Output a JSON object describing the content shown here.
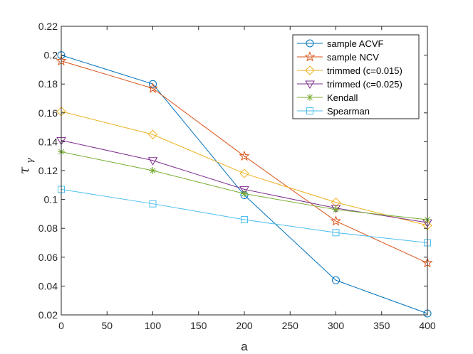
{
  "chart_data": {
    "type": "line",
    "title": "",
    "xlabel": "a",
    "ylabel_main": "τ",
    "ylabel_sub": "γ",
    "x": [
      0,
      100,
      200,
      300,
      400
    ],
    "xlim": [
      0,
      400
    ],
    "ylim": [
      0.02,
      0.22
    ],
    "xticks": [
      0,
      50,
      100,
      150,
      200,
      250,
      300,
      350,
      400
    ],
    "yticks": [
      0.02,
      0.04,
      0.06,
      0.08,
      0.1,
      0.12,
      0.14,
      0.16,
      0.18,
      0.2,
      0.22
    ],
    "xtick_labels": [
      "0",
      "50",
      "100",
      "150",
      "200",
      "250",
      "300",
      "350",
      "400"
    ],
    "ytick_labels": [
      "0.02",
      "0.04",
      "0.06",
      "0.08",
      "0.1",
      "0.12",
      "0.14",
      "0.16",
      "0.18",
      "0.2",
      "0.22"
    ],
    "legend_position": "top-right",
    "grid": false,
    "series": [
      {
        "name": "sample ACVF",
        "marker": "circle",
        "color": "#0072BD",
        "values": [
          0.2,
          0.18,
          0.103,
          0.044,
          0.021
        ]
      },
      {
        "name": "sample NCV",
        "marker": "star",
        "color": "#D95319",
        "values": [
          0.196,
          0.177,
          0.13,
          0.085,
          0.056
        ]
      },
      {
        "name": "trimmed (c=0.015)",
        "marker": "diamond",
        "color": "#EDB120",
        "values": [
          0.161,
          0.145,
          0.118,
          0.098,
          0.082
        ]
      },
      {
        "name": "trimmed (c=0.025)",
        "marker": "triangle-down",
        "color": "#7E2F8E",
        "values": [
          0.141,
          0.127,
          0.107,
          0.094,
          0.084
        ]
      },
      {
        "name": "Kendall",
        "marker": "asterisk",
        "color": "#77AC30",
        "values": [
          0.133,
          0.12,
          0.104,
          0.093,
          0.086
        ]
      },
      {
        "name": "Spearman",
        "marker": "square",
        "color": "#4DBEEE",
        "values": [
          0.107,
          0.097,
          0.086,
          0.077,
          0.07
        ]
      }
    ]
  }
}
